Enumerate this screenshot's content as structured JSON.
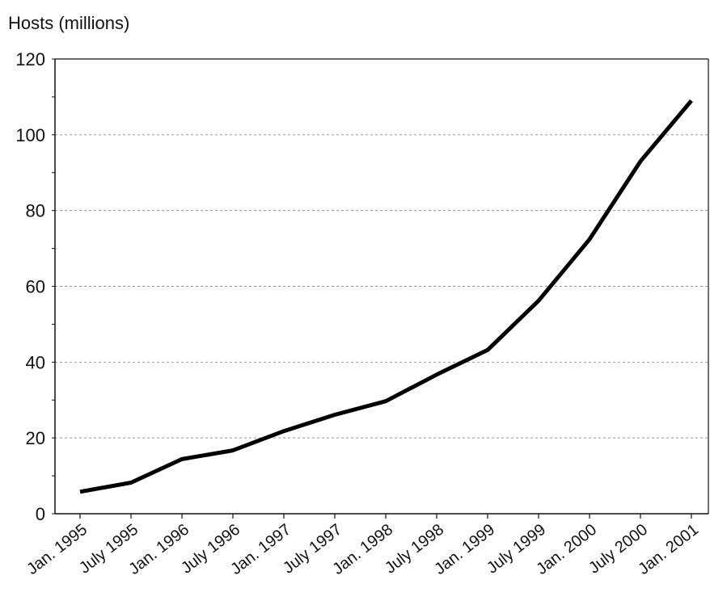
{
  "chart_data": {
    "type": "line",
    "title": "",
    "ylabel": "Hosts (millions)",
    "xlabel": "",
    "ylim": [
      0,
      120
    ],
    "yticks": [
      0,
      20,
      40,
      60,
      80,
      100,
      120
    ],
    "grid": "horizontal dashed",
    "categories": [
      "Jan. 1995",
      "July 1995",
      "Jan. 1996",
      "July 1996",
      "Jan. 1997",
      "July 1997",
      "Jan. 1998",
      "July 1998",
      "Jan. 1999",
      "July 1999",
      "Jan. 2000",
      "July 2000",
      "Jan. 2001"
    ],
    "series": [
      {
        "values": [
          5.8,
          8.2,
          14.4,
          16.7,
          21.8,
          26.1,
          29.7,
          36.7,
          43.2,
          56.2,
          72.4,
          93.0,
          109.0
        ]
      }
    ]
  }
}
